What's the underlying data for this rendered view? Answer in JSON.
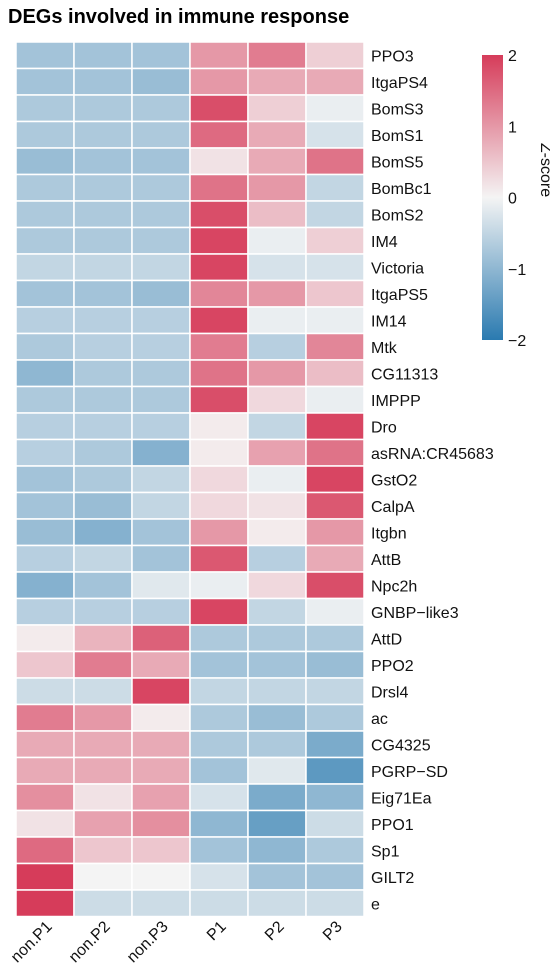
{
  "chart_data": {
    "type": "heatmap",
    "title": "DEGs involved in immune response",
    "columns": [
      "non.P1",
      "non.P2",
      "non.P3",
      "P1",
      "P2",
      "P3"
    ],
    "rows": [
      "PPO3",
      "ItgaPS4",
      "BomS3",
      "BomS1",
      "BomS5",
      "BomBc1",
      "BomS2",
      "IM4",
      "Victoria",
      "ItgaPS5",
      "IM14",
      "Mtk",
      "CG11313",
      "IMPPP",
      "Dro",
      "asRNA:CR45683",
      "GstO2",
      "CalpA",
      "Itgbn",
      "AttB",
      "Npc2h",
      "GNBP-like3",
      "AttD",
      "PPO2",
      "Drsl4",
      "ac",
      "CG4325",
      "PGRP-SD",
      "Eig71Ea",
      "PPO1",
      "Sp1",
      "GILT2",
      "e"
    ],
    "values": [
      [
        -0.8,
        -0.8,
        -0.8,
        1.0,
        1.3,
        0.4
      ],
      [
        -0.8,
        -0.8,
        -0.9,
        1.0,
        0.8,
        0.8
      ],
      [
        -0.7,
        -0.7,
        -0.7,
        1.8,
        0.4,
        -0.1
      ],
      [
        -0.7,
        -0.7,
        -0.7,
        1.5,
        0.8,
        -0.3
      ],
      [
        -0.9,
        -0.8,
        -0.8,
        0.2,
        0.8,
        1.4
      ],
      [
        -0.7,
        -0.7,
        -0.7,
        1.4,
        1.0,
        -0.5
      ],
      [
        -0.7,
        -0.7,
        -0.7,
        1.8,
        0.6,
        -0.5
      ],
      [
        -0.7,
        -0.7,
        -0.7,
        1.9,
        -0.1,
        0.4
      ],
      [
        -0.5,
        -0.5,
        -0.5,
        1.9,
        -0.3,
        -0.3
      ],
      [
        -0.8,
        -0.8,
        -0.9,
        1.2,
        1.0,
        0.5
      ],
      [
        -0.6,
        -0.6,
        -0.6,
        1.9,
        -0.1,
        -0.1
      ],
      [
        -0.7,
        -0.6,
        -0.6,
        1.3,
        -0.6,
        1.2
      ],
      [
        -1.0,
        -0.7,
        -0.7,
        1.4,
        1.0,
        0.6
      ],
      [
        -0.7,
        -0.7,
        -0.7,
        1.8,
        0.3,
        -0.1
      ],
      [
        -0.6,
        -0.6,
        -0.6,
        0.1,
        -0.5,
        1.9
      ],
      [
        -0.6,
        -0.7,
        -1.1,
        0.1,
        0.9,
        1.4
      ],
      [
        -0.8,
        -0.7,
        -0.5,
        0.3,
        -0.1,
        1.9
      ],
      [
        -0.8,
        -0.9,
        -0.5,
        0.3,
        0.2,
        1.7
      ],
      [
        -0.9,
        -1.1,
        -0.8,
        1.0,
        0.1,
        1.0
      ],
      [
        -0.6,
        -0.5,
        -0.8,
        1.7,
        -0.6,
        0.8
      ],
      [
        -1.1,
        -0.8,
        -0.2,
        -0.1,
        0.3,
        1.8
      ],
      [
        -0.6,
        -0.6,
        -0.6,
        1.9,
        -0.5,
        -0.1
      ],
      [
        0.1,
        0.7,
        1.6,
        -0.7,
        -0.7,
        -0.7
      ],
      [
        0.5,
        1.3,
        0.8,
        -0.8,
        -0.8,
        -0.9
      ],
      [
        -0.4,
        -0.4,
        1.9,
        -0.5,
        -0.5,
        -0.5
      ],
      [
        1.3,
        1.0,
        0.1,
        -0.7,
        -0.9,
        -0.7
      ],
      [
        0.8,
        0.8,
        0.8,
        -0.7,
        -0.7,
        -1.2
      ],
      [
        0.8,
        0.8,
        0.8,
        -0.8,
        -0.2,
        -1.5
      ],
      [
        1.1,
        0.2,
        0.9,
        -0.3,
        -1.2,
        -1.0
      ],
      [
        0.2,
        0.9,
        1.1,
        -1.0,
        -1.4,
        -0.4
      ],
      [
        1.5,
        0.5,
        0.5,
        -0.8,
        -1.0,
        -0.7
      ],
      [
        2.0,
        0.0,
        0.0,
        -0.3,
        -0.8,
        -0.8
      ],
      [
        2.0,
        -0.4,
        -0.4,
        -0.4,
        -0.4,
        -0.4
      ]
    ],
    "colorbar": {
      "title": "Z-score",
      "ticks": [
        2,
        1,
        0,
        -1,
        -2
      ],
      "tick_labels": [
        "2",
        "1",
        "0",
        "−1",
        "−2"
      ],
      "range": [
        -2,
        2
      ],
      "colors": {
        "low": "#2a7ab0",
        "mid": "#f4f4f4",
        "high": "#d63c5a"
      }
    },
    "cell_border_color": "#ffffff",
    "legend_placement": "top-right"
  }
}
